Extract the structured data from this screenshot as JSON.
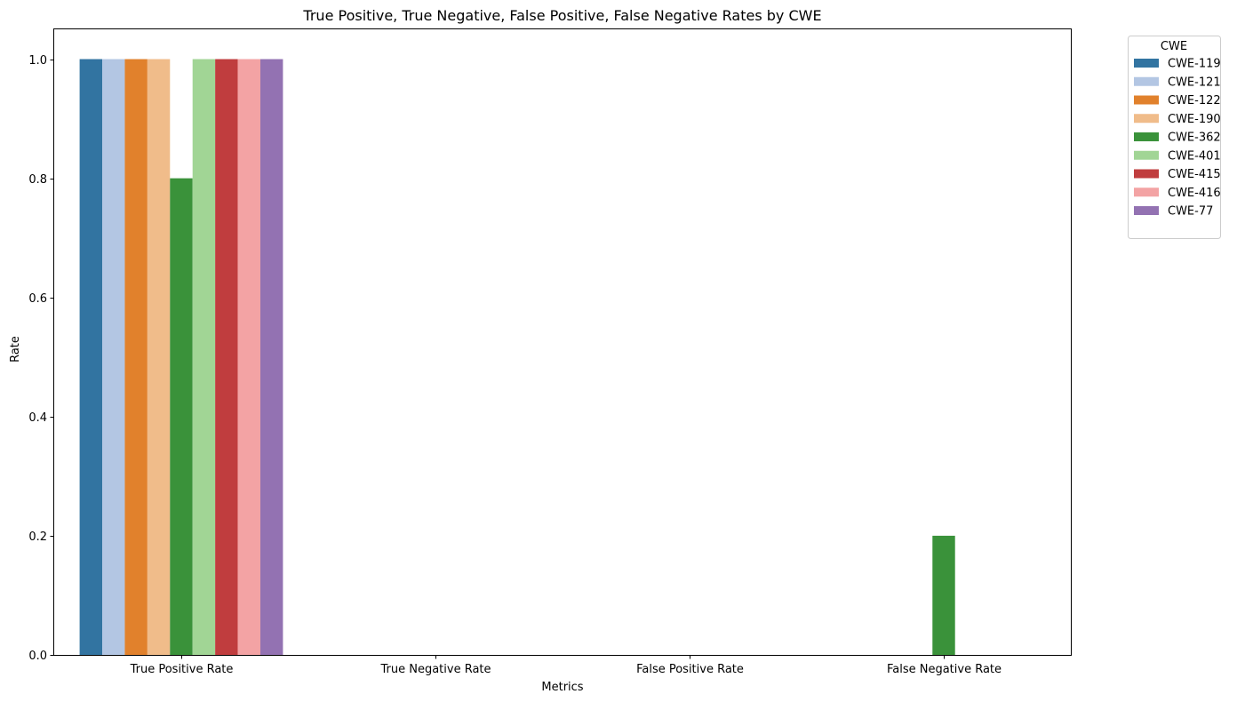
{
  "chart_data": {
    "type": "bar",
    "title": "True Positive, True Negative, False Positive, False Negative Rates by CWE",
    "xlabel": "Metrics",
    "ylabel": "Rate",
    "categories": [
      "True Positive Rate",
      "True Negative Rate",
      "False Positive Rate",
      "False Negative Rate"
    ],
    "ylim": [
      0,
      1.05
    ],
    "yticks": [
      0.0,
      0.2,
      0.4,
      0.6,
      0.8,
      1.0
    ],
    "ytick_labels": [
      "0.0",
      "0.2",
      "0.4",
      "0.6",
      "0.8",
      "1.0"
    ],
    "grid": false,
    "legend": {
      "title": "CWE",
      "placement": "outside top-right"
    },
    "series": [
      {
        "name": "CWE-119",
        "color": "#3274a1",
        "values": [
          1.0,
          0.0,
          0.0,
          0.0
        ]
      },
      {
        "name": "CWE-121",
        "color": "#b3c6e3",
        "values": [
          1.0,
          0.0,
          0.0,
          0.0
        ]
      },
      {
        "name": "CWE-122",
        "color": "#e1812c",
        "values": [
          1.0,
          0.0,
          0.0,
          0.0
        ]
      },
      {
        "name": "CWE-190",
        "color": "#f0bc8a",
        "values": [
          1.0,
          0.0,
          0.0,
          0.0
        ]
      },
      {
        "name": "CWE-362",
        "color": "#3a923a",
        "values": [
          0.8,
          0.0,
          0.0,
          0.2
        ]
      },
      {
        "name": "CWE-401",
        "color": "#a1d595",
        "values": [
          1.0,
          0.0,
          0.0,
          0.0
        ]
      },
      {
        "name": "CWE-415",
        "color": "#c03d3e",
        "values": [
          1.0,
          0.0,
          0.0,
          0.0
        ]
      },
      {
        "name": "CWE-416",
        "color": "#f3a3a4",
        "values": [
          1.0,
          0.0,
          0.0,
          0.0
        ]
      },
      {
        "name": "CWE-77",
        "color": "#9372b2",
        "values": [
          1.0,
          0.0,
          0.0,
          0.0
        ]
      }
    ]
  }
}
